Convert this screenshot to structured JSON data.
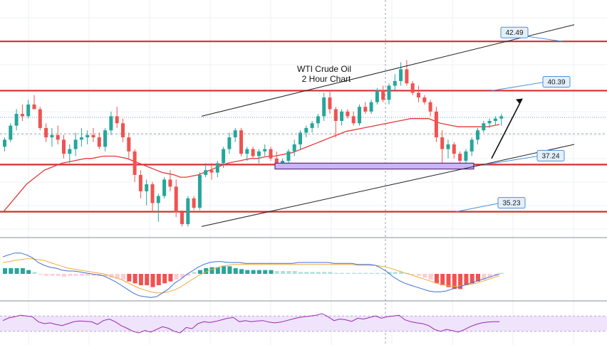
{
  "title_line1": "WTI Crude Oil",
  "title_line2": "2 Hour Chart",
  "colors": {
    "bull": "#26a69a",
    "bear": "#ef5350",
    "level_line": "#d32f2f",
    "ma": "#e53935",
    "channel": "#222222",
    "label_fill": "#e3f0fb",
    "label_stroke": "#4a90d9",
    "zone_fill": "#c9b6f2",
    "zone_stroke": "#5b2a86",
    "macd_line": "#3f6fd8",
    "signal_line": "#f2a93b",
    "rsi_line": "#9c27b0",
    "rsi_band": "#efe4fb",
    "grid": "#eef1f5"
  },
  "chart_data": {
    "type": "candlestick",
    "title": "WTI Crude Oil 2 Hour Chart",
    "price_range": [
      34.4,
      43.8
    ],
    "levels": [
      {
        "label": "42.49",
        "value": 42.49
      },
      {
        "label": "40.39",
        "value": 40.39
      },
      {
        "label": "37.24",
        "value": 37.24
      },
      {
        "label": "35.23",
        "value": 35.23
      }
    ],
    "candles": [
      [
        38.0,
        38.4,
        37.8,
        38.3
      ],
      [
        38.3,
        39.0,
        38.2,
        38.9
      ],
      [
        38.9,
        39.6,
        38.7,
        39.4
      ],
      [
        39.4,
        39.8,
        39.1,
        39.3
      ],
      [
        39.3,
        40.0,
        39.2,
        39.8
      ],
      [
        39.8,
        40.2,
        39.6,
        39.6
      ],
      [
        39.6,
        39.7,
        38.7,
        38.8
      ],
      [
        38.8,
        39.0,
        38.2,
        38.4
      ],
      [
        38.4,
        38.8,
        38.0,
        38.5
      ],
      [
        38.5,
        38.9,
        38.1,
        38.3
      ],
      [
        38.3,
        38.5,
        37.5,
        37.7
      ],
      [
        37.7,
        38.1,
        37.3,
        37.9
      ],
      [
        37.9,
        38.6,
        37.6,
        38.3
      ],
      [
        38.3,
        38.8,
        38.0,
        38.4
      ],
      [
        38.4,
        38.7,
        38.1,
        38.5
      ],
      [
        38.5,
        38.8,
        38.2,
        38.4
      ],
      [
        38.4,
        38.6,
        37.9,
        38.0
      ],
      [
        38.0,
        38.8,
        37.8,
        38.7
      ],
      [
        38.7,
        39.5,
        38.5,
        39.3
      ],
      [
        39.3,
        39.7,
        38.8,
        39.0
      ],
      [
        39.0,
        39.2,
        38.2,
        38.4
      ],
      [
        38.4,
        38.6,
        37.5,
        37.8
      ],
      [
        37.8,
        37.9,
        36.5,
        36.8
      ],
      [
        36.8,
        37.0,
        35.8,
        36.1
      ],
      [
        36.1,
        36.6,
        35.5,
        36.4
      ],
      [
        36.4,
        36.5,
        35.2,
        35.6
      ],
      [
        35.6,
        36.0,
        34.8,
        35.9
      ],
      [
        35.9,
        36.7,
        35.8,
        36.6
      ],
      [
        36.6,
        37.0,
        36.1,
        36.3
      ],
      [
        36.3,
        36.6,
        35.0,
        35.2
      ],
      [
        35.2,
        35.3,
        34.6,
        34.7
      ],
      [
        34.7,
        35.9,
        34.6,
        35.8
      ],
      [
        35.8,
        35.9,
        35.3,
        35.4
      ],
      [
        35.4,
        36.9,
        35.3,
        36.8
      ],
      [
        36.8,
        37.3,
        36.7,
        37.0
      ],
      [
        37.0,
        37.3,
        36.6,
        36.9
      ],
      [
        36.9,
        37.4,
        36.7,
        37.3
      ],
      [
        37.3,
        38.0,
        37.1,
        37.9
      ],
      [
        37.9,
        38.6,
        37.7,
        38.4
      ],
      [
        38.4,
        38.8,
        38.2,
        38.7
      ],
      [
        38.7,
        38.8,
        37.6,
        37.7
      ],
      [
        37.7,
        38.0,
        37.4,
        37.9
      ],
      [
        37.9,
        38.0,
        37.5,
        37.6
      ],
      [
        37.6,
        37.9,
        37.3,
        37.8
      ],
      [
        37.8,
        38.1,
        37.6,
        37.9
      ],
      [
        37.9,
        38.0,
        37.4,
        37.5
      ],
      [
        37.5,
        37.8,
        37.2,
        37.3
      ],
      [
        37.3,
        37.5,
        37.1,
        37.4
      ],
      [
        37.4,
        37.9,
        37.3,
        37.8
      ],
      [
        37.8,
        38.3,
        37.6,
        38.1
      ],
      [
        38.1,
        38.7,
        37.9,
        38.6
      ],
      [
        38.6,
        38.9,
        38.4,
        38.8
      ],
      [
        38.8,
        39.1,
        38.6,
        39.0
      ],
      [
        39.0,
        39.4,
        38.8,
        39.3
      ],
      [
        39.3,
        40.3,
        39.1,
        40.1
      ],
      [
        40.1,
        40.4,
        39.4,
        39.6
      ],
      [
        39.6,
        39.7,
        38.4,
        39.1
      ],
      [
        39.1,
        39.6,
        38.9,
        39.5
      ],
      [
        39.5,
        39.6,
        39.2,
        39.3
      ],
      [
        39.3,
        39.5,
        38.9,
        39.0
      ],
      [
        39.0,
        39.8,
        38.9,
        39.7
      ],
      [
        39.7,
        39.9,
        39.4,
        39.5
      ],
      [
        39.5,
        40.0,
        39.4,
        39.9
      ],
      [
        39.9,
        40.5,
        39.8,
        40.4
      ],
      [
        40.4,
        40.6,
        39.9,
        40.0
      ],
      [
        40.0,
        40.7,
        39.8,
        40.6
      ],
      [
        40.6,
        41.1,
        40.4,
        40.8
      ],
      [
        40.8,
        41.6,
        40.6,
        41.3
      ],
      [
        41.3,
        41.7,
        40.6,
        40.7
      ],
      [
        40.7,
        40.8,
        40.2,
        40.3
      ],
      [
        40.3,
        40.6,
        39.9,
        40.1
      ],
      [
        40.1,
        40.2,
        39.8,
        39.9
      ],
      [
        39.9,
        40.0,
        39.3,
        39.5
      ],
      [
        39.5,
        39.7,
        38.2,
        38.4
      ],
      [
        38.4,
        38.7,
        37.3,
        37.9
      ],
      [
        37.9,
        38.3,
        37.5,
        38.1
      ],
      [
        38.1,
        38.2,
        37.5,
        37.7
      ],
      [
        37.7,
        37.8,
        37.3,
        37.4
      ],
      [
        37.4,
        37.9,
        37.3,
        37.8
      ],
      [
        37.8,
        38.4,
        37.6,
        38.3
      ],
      [
        38.3,
        38.8,
        38.1,
        38.7
      ],
      [
        38.7,
        39.1,
        38.6,
        39.0
      ],
      [
        39.0,
        39.2,
        38.8,
        39.1
      ],
      [
        39.1,
        39.3,
        38.9,
        39.2
      ],
      [
        39.2,
        39.4,
        38.9,
        39.3
      ]
    ],
    "moving_average": {
      "name": "",
      "values": [
        35.2,
        35.5,
        35.8,
        36.1,
        36.4,
        36.6,
        36.8,
        37.0,
        37.1,
        37.2,
        37.3,
        37.35,
        37.4,
        37.45,
        37.5,
        37.5,
        37.55,
        37.6,
        37.6,
        37.6,
        37.55,
        37.5,
        37.4,
        37.3,
        37.2,
        37.1,
        37.0,
        36.9,
        36.85,
        36.8,
        36.7,
        36.7,
        36.75,
        36.8,
        36.9,
        37.0,
        37.1,
        37.2,
        37.3,
        37.35,
        37.4,
        37.45,
        37.5,
        37.5,
        37.55,
        37.6,
        37.6,
        37.65,
        37.7,
        37.75,
        37.85,
        37.95,
        38.05,
        38.15,
        38.25,
        38.35,
        38.45,
        38.55,
        38.65,
        38.7,
        38.75,
        38.8,
        38.85,
        38.9,
        38.95,
        39.0,
        39.05,
        39.1,
        39.15,
        39.2,
        39.2,
        39.2,
        39.2,
        39.1,
        39.0,
        38.95,
        38.9,
        38.85,
        38.85,
        38.85,
        38.85,
        38.85,
        38.85,
        38.9,
        38.95
      ]
    },
    "macd": {
      "histogram": [
        0.3,
        0.3,
        0.3,
        0.3,
        0.2,
        0.1,
        -0.05,
        -0.1,
        -0.1,
        -0.1,
        -0.15,
        -0.1,
        -0.1,
        -0.1,
        -0.1,
        -0.1,
        -0.1,
        -0.15,
        -0.2,
        -0.25,
        -0.3,
        -0.4,
        -0.5,
        -0.6,
        -0.6,
        -0.7,
        -0.6,
        -0.5,
        -0.4,
        -0.3,
        -0.2,
        -0.1,
        0.1,
        0.2,
        0.3,
        0.35,
        0.35,
        0.4,
        0.4,
        0.3,
        0.25,
        0.2,
        0.2,
        0.2,
        0.2,
        0.2,
        0.15,
        0.15,
        0.15,
        0.15,
        0.1,
        0.1,
        0.1,
        0.1,
        0.1,
        0.1,
        0.05,
        0.05,
        0.05,
        0.05,
        0.05,
        0.05,
        0.05,
        0.05,
        0.05,
        0.1,
        0.1,
        0.1,
        0.05,
        -0.05,
        -0.1,
        -0.2,
        -0.3,
        -0.5,
        -0.6,
        -0.7,
        -0.8,
        -0.8,
        -0.6,
        -0.5,
        -0.4,
        -0.3,
        -0.2,
        -0.1,
        0.05
      ],
      "macd_line": [
        0.9,
        1.0,
        1.1,
        1.1,
        1.0,
        0.85,
        0.6,
        0.45,
        0.35,
        0.3,
        0.2,
        0.15,
        0.15,
        0.1,
        0.05,
        0.0,
        -0.05,
        -0.1,
        -0.25,
        -0.4,
        -0.6,
        -0.8,
        -1.0,
        -1.15,
        -1.2,
        -1.25,
        -1.2,
        -1.0,
        -0.8,
        -0.5,
        -0.3,
        -0.05,
        0.15,
        0.35,
        0.5,
        0.6,
        0.65,
        0.65,
        0.6,
        0.6,
        0.6,
        0.55,
        0.55,
        0.55,
        0.55,
        0.55,
        0.55,
        0.55,
        0.55,
        0.55,
        0.6,
        0.6,
        0.6,
        0.6,
        0.6,
        0.6,
        0.55,
        0.55,
        0.55,
        0.55,
        0.5,
        0.5,
        0.5,
        0.45,
        0.3,
        0.1,
        -0.15,
        -0.35,
        -0.5,
        -0.6,
        -0.7,
        -0.8,
        -0.9,
        -0.95,
        -0.95,
        -0.9,
        -0.8,
        -0.7,
        -0.6,
        -0.5,
        -0.4,
        -0.3,
        -0.2,
        -0.1,
        0.0
      ],
      "signal_line": [
        0.6,
        0.65,
        0.7,
        0.75,
        0.8,
        0.8,
        0.75,
        0.7,
        0.6,
        0.5,
        0.4,
        0.3,
        0.25,
        0.2,
        0.15,
        0.1,
        0.05,
        0.0,
        -0.1,
        -0.2,
        -0.3,
        -0.45,
        -0.6,
        -0.75,
        -0.85,
        -0.95,
        -1.0,
        -1.0,
        -0.95,
        -0.85,
        -0.7,
        -0.5,
        -0.3,
        -0.1,
        0.05,
        0.2,
        0.3,
        0.4,
        0.45,
        0.5,
        0.5,
        0.5,
        0.5,
        0.5,
        0.5,
        0.5,
        0.5,
        0.5,
        0.5,
        0.5,
        0.5,
        0.5,
        0.5,
        0.5,
        0.5,
        0.5,
        0.5,
        0.5,
        0.5,
        0.5,
        0.45,
        0.45,
        0.45,
        0.45,
        0.4,
        0.35,
        0.25,
        0.15,
        0.05,
        -0.05,
        -0.15,
        -0.25,
        -0.35,
        -0.45,
        -0.55,
        -0.6,
        -0.65,
        -0.65,
        -0.6,
        -0.55,
        -0.5,
        -0.4,
        -0.3,
        -0.2,
        -0.1
      ],
      "range": [
        -1.5,
        1.5
      ]
    },
    "rsi": {
      "values": [
        58,
        65,
        68,
        72,
        70,
        68,
        55,
        50,
        52,
        48,
        45,
        50,
        55,
        57,
        56,
        55,
        48,
        58,
        62,
        55,
        45,
        38,
        30,
        26,
        32,
        28,
        35,
        42,
        38,
        30,
        26,
        40,
        37,
        50,
        55,
        53,
        56,
        60,
        64,
        66,
        55,
        58,
        55,
        57,
        58,
        54,
        52,
        54,
        58,
        62,
        66,
        68,
        70,
        72,
        76,
        68,
        58,
        62,
        60,
        56,
        64,
        62,
        66,
        70,
        64,
        68,
        70,
        72,
        60,
        55,
        52,
        50,
        45,
        35,
        30,
        35,
        32,
        28,
        34,
        42,
        48,
        52,
        54,
        55,
        55
      ],
      "range": [
        0,
        100
      ],
      "band": [
        30,
        70
      ]
    }
  }
}
